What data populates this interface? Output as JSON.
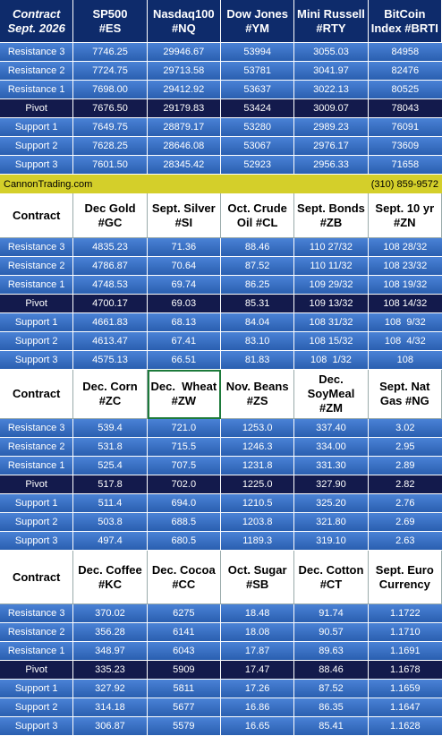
{
  "sections": [
    {
      "header": [
        [
          "Contract",
          "Sept. 2026"
        ],
        [
          "SP500",
          "#ES"
        ],
        [
          "Nasdaq100",
          "#NQ"
        ],
        [
          "Dow Jones",
          "#YM"
        ],
        [
          "Mini Russell",
          "#RTY"
        ],
        [
          "BitCoin",
          "Index #BRTI"
        ]
      ],
      "rows": [
        {
          "label": "Resistance 3",
          "cells": [
            "7746.25",
            "29946.67",
            "53994",
            "3055.03",
            "84958"
          ]
        },
        {
          "label": "Resistance 2",
          "cells": [
            "7724.75",
            "29713.58",
            "53781",
            "3041.97",
            "82476"
          ]
        },
        {
          "label": "Resistance 1",
          "cells": [
            "7698.00",
            "29412.92",
            "53637",
            "3022.13",
            "80525"
          ]
        },
        {
          "label": "Pivot",
          "cells": [
            "7676.50",
            "29179.83",
            "53424",
            "3009.07",
            "78043"
          ]
        },
        {
          "label": "Support 1",
          "cells": [
            "7649.75",
            "28879.17",
            "53280",
            "2989.23",
            "76091"
          ]
        },
        {
          "label": "Support 2",
          "cells": [
            "7628.25",
            "28646.08",
            "53067",
            "2976.17",
            "73609"
          ]
        },
        {
          "label": "Support 3",
          "cells": [
            "7601.50",
            "28345.42",
            "52923",
            "2956.33",
            "71658"
          ]
        }
      ]
    },
    {
      "header": [
        [
          "Contract"
        ],
        [
          "Dec Gold",
          "#GC"
        ],
        [
          "Sept. Silver",
          "#SI"
        ],
        [
          "Oct. Crude",
          "Oil #CL"
        ],
        [
          "Sept. Bonds",
          "#ZB"
        ],
        [
          "Sept. 10 yr",
          "#ZN"
        ]
      ],
      "rows": [
        {
          "label": "Resistance 3",
          "cells": [
            "4835.23",
            "71.36",
            "88.46",
            "110 27/32",
            "108 28/32"
          ]
        },
        {
          "label": "Resistance 2",
          "cells": [
            "4786.87",
            "70.64",
            "87.52",
            "110 11/32",
            "108 23/32"
          ]
        },
        {
          "label": "Resistance 1",
          "cells": [
            "4748.53",
            "69.74",
            "86.25",
            "109 29/32",
            "108 19/32"
          ]
        },
        {
          "label": "Pivot",
          "cells": [
            "4700.17",
            "69.03",
            "85.31",
            "109 13/32",
            "108 14/32"
          ]
        },
        {
          "label": "Support 1",
          "cells": [
            "4661.83",
            "68.13",
            "84.04",
            "108 31/32",
            "108  9/32"
          ]
        },
        {
          "label": "Support 2",
          "cells": [
            "4613.47",
            "67.41",
            "83.10",
            "108 15/32",
            "108  4/32"
          ]
        },
        {
          "label": "Support 3",
          "cells": [
            "4575.13",
            "66.51",
            "81.83",
            "108  1/32",
            "108"
          ]
        }
      ]
    },
    {
      "header": [
        [
          "Contract"
        ],
        [
          "Dec. Corn",
          "#ZC"
        ],
        [
          "Dec.  Wheat",
          "#ZW"
        ],
        [
          "Nov. Beans",
          "#ZS"
        ],
        [
          "Dec.",
          "SoyMeal",
          "#ZM"
        ],
        [
          "Sept. Nat",
          "Gas #NG"
        ]
      ],
      "rows": [
        {
          "label": "Resistance 3",
          "cells": [
            "539.4",
            "721.0",
            "1253.0",
            "337.40",
            "3.02"
          ]
        },
        {
          "label": "Resistance 2",
          "cells": [
            "531.8",
            "715.5",
            "1246.3",
            "334.00",
            "2.95"
          ]
        },
        {
          "label": "Resistance 1",
          "cells": [
            "525.4",
            "707.5",
            "1231.8",
            "331.30",
            "2.89"
          ]
        },
        {
          "label": "Pivot",
          "cells": [
            "517.8",
            "702.0",
            "1225.0",
            "327.90",
            "2.82"
          ]
        },
        {
          "label": "Support 1",
          "cells": [
            "511.4",
            "694.0",
            "1210.5",
            "325.20",
            "2.76"
          ]
        },
        {
          "label": "Support 2",
          "cells": [
            "503.8",
            "688.5",
            "1203.8",
            "321.80",
            "2.69"
          ]
        },
        {
          "label": "Support 3",
          "cells": [
            "497.4",
            "680.5",
            "1189.3",
            "319.10",
            "2.63"
          ]
        }
      ]
    },
    {
      "header": [
        [
          "Contract"
        ],
        [
          "Dec. Coffee",
          "#KC"
        ],
        [
          "Dec. Cocoa",
          "#CC"
        ],
        [
          "Oct. Sugar",
          "#SB"
        ],
        [
          "Dec. Cotton",
          "#CT"
        ],
        [
          "Sept. Euro",
          "Currency"
        ]
      ],
      "rows": [
        {
          "label": "Resistance 3",
          "cells": [
            "370.02",
            "6275",
            "18.48",
            "91.74",
            "1.1722"
          ]
        },
        {
          "label": "Resistance 2",
          "cells": [
            "356.28",
            "6141",
            "18.08",
            "90.57",
            "1.1710"
          ]
        },
        {
          "label": "Resistance 1",
          "cells": [
            "348.97",
            "6043",
            "17.87",
            "89.63",
            "1.1691"
          ]
        },
        {
          "label": "Pivot",
          "cells": [
            "335.23",
            "5909",
            "17.47",
            "88.46",
            "1.1678"
          ]
        },
        {
          "label": "Support 1",
          "cells": [
            "327.92",
            "5811",
            "17.26",
            "87.52",
            "1.1659"
          ]
        },
        {
          "label": "Support 2",
          "cells": [
            "314.18",
            "5677",
            "16.86",
            "86.35",
            "1.1647"
          ]
        },
        {
          "label": "Support 3",
          "cells": [
            "306.87",
            "5579",
            "16.65",
            "85.41",
            "1.1628"
          ]
        }
      ]
    }
  ],
  "banner": {
    "site": "CannonTrading.com",
    "phone": "(310) 859-9572"
  }
}
